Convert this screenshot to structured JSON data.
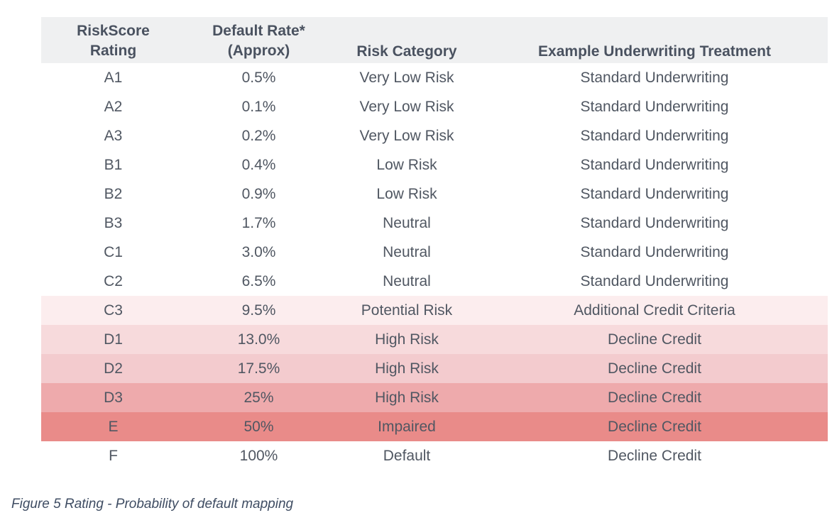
{
  "table": {
    "headers": [
      {
        "line1": "RiskScore",
        "line2": "Rating"
      },
      {
        "line1": "Default Rate*",
        "line2": "(Approx)"
      },
      {
        "line1": "Risk Category",
        "line2": ""
      },
      {
        "line1": "Example Underwriting Treatment",
        "line2": ""
      }
    ],
    "rows": [
      {
        "rating": "A1",
        "default_rate": "0.5%",
        "risk_category": "Very Low Risk",
        "treatment": "Standard Underwriting",
        "row_color": "#ffffff"
      },
      {
        "rating": "A2",
        "default_rate": "0.1%",
        "risk_category": "Very Low Risk",
        "treatment": "Standard Underwriting",
        "row_color": "#ffffff"
      },
      {
        "rating": "A3",
        "default_rate": "0.2%",
        "risk_category": "Very Low Risk",
        "treatment": "Standard Underwriting",
        "row_color": "#ffffff"
      },
      {
        "rating": "B1",
        "default_rate": "0.4%",
        "risk_category": "Low Risk",
        "treatment": "Standard Underwriting",
        "row_color": "#ffffff"
      },
      {
        "rating": "B2",
        "default_rate": "0.9%",
        "risk_category": "Low Risk",
        "treatment": "Standard Underwriting",
        "row_color": "#ffffff"
      },
      {
        "rating": "B3",
        "default_rate": "1.7%",
        "risk_category": "Neutral",
        "treatment": "Standard Underwriting",
        "row_color": "#ffffff"
      },
      {
        "rating": "C1",
        "default_rate": "3.0%",
        "risk_category": "Neutral",
        "treatment": "Standard Underwriting",
        "row_color": "#ffffff"
      },
      {
        "rating": "C2",
        "default_rate": "6.5%",
        "risk_category": "Neutral",
        "treatment": "Standard Underwriting",
        "row_color": "#ffffff"
      },
      {
        "rating": "C3",
        "default_rate": "9.5%",
        "risk_category": "Potential Risk",
        "treatment": "Additional Credit Criteria",
        "row_color": "#fcedee"
      },
      {
        "rating": "D1",
        "default_rate": "13.0%",
        "risk_category": "High Risk",
        "treatment": "Decline Credit",
        "row_color": "#f7dadc"
      },
      {
        "rating": "D2",
        "default_rate": "17.5%",
        "risk_category": "High Risk",
        "treatment": "Decline Credit",
        "row_color": "#f3cbce"
      },
      {
        "rating": "D3",
        "default_rate": "25%",
        "risk_category": "High Risk",
        "treatment": "Decline Credit",
        "row_color": "#eeaaac"
      },
      {
        "rating": "E",
        "default_rate": "50%",
        "risk_category": "Impaired",
        "treatment": "Decline Credit",
        "row_color": "#e98b89"
      },
      {
        "rating": "F",
        "default_rate": "100%",
        "risk_category": "Default",
        "treatment": "Decline Credit",
        "row_color": "#ffffff"
      }
    ]
  },
  "caption": "Figure 5 Rating - Probability of default mapping"
}
